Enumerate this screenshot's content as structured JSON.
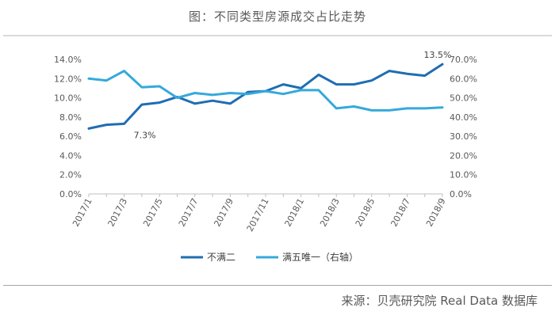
{
  "title": "图：不同类型房源成交占比走势",
  "source": "来源：贝壳研究院 Real Data 数据库",
  "colors": {
    "series1": "#1f6db3",
    "series2": "#35a9dc",
    "axis": "#bfbfbf",
    "text": "#595959"
  },
  "chart_data": {
    "type": "line",
    "x": [
      "2017/1",
      "2017/2",
      "2017/3",
      "2017/4",
      "2017/5",
      "2017/6",
      "2017/7",
      "2017/8",
      "2017/9",
      "2017/10",
      "2017/11",
      "2017/12",
      "2018/1",
      "2018/2",
      "2018/3",
      "2018/4",
      "2018/5",
      "2018/6",
      "2018/7",
      "2018/8",
      "2018/9"
    ],
    "x_tick_labels": [
      "2017/1",
      "2017/3",
      "2017/5",
      "2017/7",
      "2017/9",
      "2017/11",
      "2018/1",
      "2018/3",
      "2018/5",
      "2018/7",
      "2018/9"
    ],
    "y_left": {
      "ticks": [
        "0.0%",
        "2.0%",
        "4.0%",
        "6.0%",
        "8.0%",
        "10.0%",
        "12.0%",
        "14.0%"
      ],
      "ylim": [
        0,
        14
      ]
    },
    "y_right": {
      "ticks": [
        "0.0%",
        "10.0%",
        "20.0%",
        "30.0%",
        "40.0%",
        "50.0%",
        "60.0%",
        "70.0%"
      ],
      "ylim": [
        0,
        70
      ]
    },
    "series": [
      {
        "name": "不满二",
        "axis": "left",
        "values": [
          6.8,
          7.2,
          7.3,
          9.3,
          9.5,
          10.1,
          9.4,
          9.7,
          9.4,
          10.6,
          10.7,
          11.4,
          11.0,
          12.4,
          11.4,
          11.4,
          11.8,
          12.8,
          12.5,
          12.3,
          13.5
        ]
      },
      {
        "name": "满五唯一（右轴）",
        "axis": "right",
        "values": [
          60,
          59,
          64,
          55.5,
          56,
          50,
          52.5,
          51.5,
          52.5,
          52,
          53.5,
          52,
          54,
          54,
          44.5,
          45.5,
          43.5,
          43.5,
          44.5,
          44.5,
          45
        ]
      }
    ],
    "annotations": [
      {
        "series": 0,
        "index": 2,
        "text": "7.3%"
      },
      {
        "series": 0,
        "index": 20,
        "text": "13.5%"
      }
    ],
    "legend": {
      "position": "bottom",
      "items": [
        "不满二",
        "满五唯一（右轴）"
      ]
    },
    "grid": false
  }
}
